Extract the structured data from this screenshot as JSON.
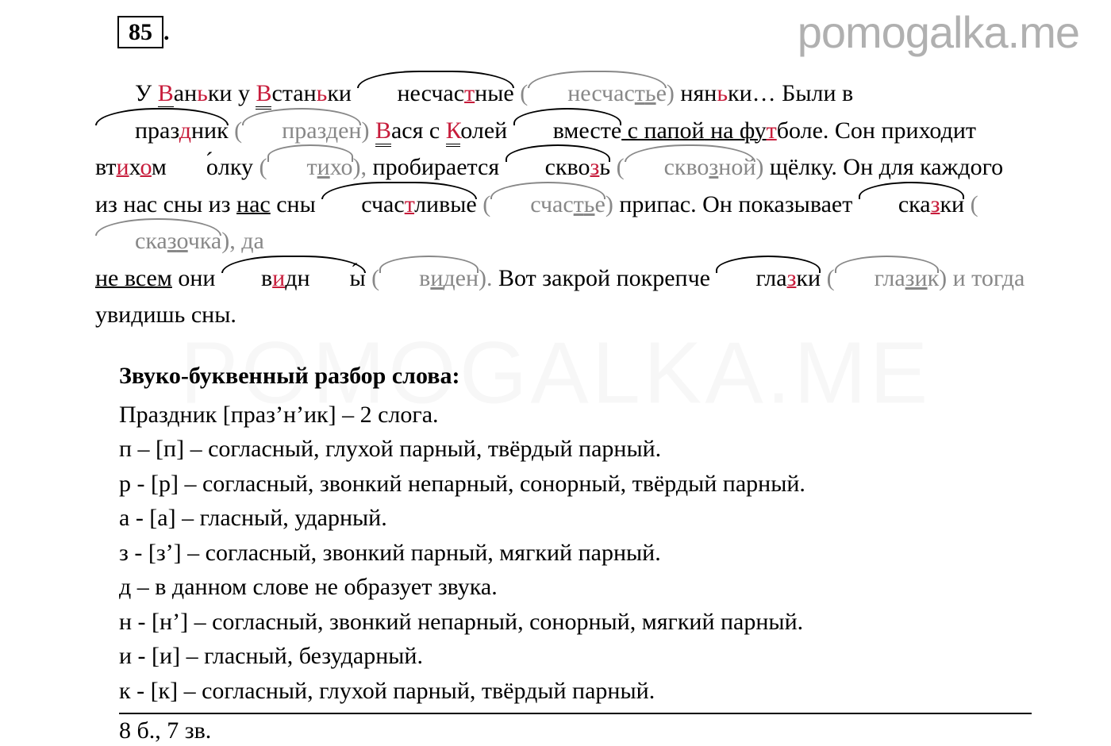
{
  "colors": {
    "text": "#000000",
    "highlight": "#c71c3b",
    "gray": "#888888",
    "watermark": "#b0b0b0",
    "background": "#ffffff"
  },
  "typography": {
    "body_font": "Georgia / Times New Roman serif",
    "body_size_pt": 22,
    "heading_weight": "bold",
    "watermark_font": "Arial sans-serif",
    "watermark_size_pt": 42
  },
  "watermark": "pomogalka.me",
  "exercise_number": "85",
  "exercise_dot": ".",
  "paragraph": {
    "s1_a": "У ",
    "s1_V1": "В",
    "s1_an": "ан",
    "s1_soft1": "ь",
    "s1_ki": "ки у ",
    "s1_V2": "В",
    "s1_stan": "стан",
    "s1_soft2": "ь",
    "s1_ki2": "ки ",
    "s1_neschast": "несчас",
    "s1_t": "т",
    "s1_nye": "ные",
    "s1_paren_open": " (",
    "s1_check_neschast": "несчас",
    "s1_check_t": "т",
    "s1_check_soft": "ь",
    "s1_check_e": "е",
    "s1_paren_close": ") ",
    "s1_nyan": "нян",
    "s1_soft3": "ь",
    "s1_ki3": "ки… Были в",
    "s2_praz": "праз",
    "s2_d": "д",
    "s2_nik": "ник",
    "s2_paren_open": " (",
    "s2_check_praz": "праз",
    "s2_check_d": "д",
    "s2_check_en": "ен",
    "s2_paren_close": ") ",
    "s2_V": "В",
    "s2_asya": "ася с ",
    "s2_K": "К",
    "s2_oley": "олей ",
    "s2_vmeste": "вместе",
    "s2_spapoy": " с папой",
    "s2_nafu": " на фу",
    "s2_t": "т",
    "s2_bole": "боле. Сон приходит",
    "s3_vt": "вт",
    "s3_i": "и",
    "s3_kh": "х",
    "s3_o": "о",
    "s3_molku": "м",
    "s3_oacc": "о",
    "s3_lku": "лку",
    "s3_paren_open": " (",
    "s3_check_t": "т",
    "s3_check_i": "и",
    "s3_check_kho": "хо",
    "s3_paren_close": "), ",
    "s3_probiraetsya": "пробирается ",
    "s3_skvo": "скво",
    "s3_z": "з",
    "s3_soft": "ь",
    "s3_po": " (",
    "s3_ck_skvo": "скво",
    "s3_ck_z": "з",
    "s3_ck_noy": "ной",
    "s3_pc": ") ",
    "s3_shchelku": "щёлку. Он для каждого",
    "s4_iznas": "из нас сны ",
    "s4_schas": "счас",
    "s4_t": "т",
    "s4_livye": "ливые",
    "s4_po": " (",
    "s4_ck_schas": "счас",
    "s4_ck_t": "т",
    "s4_ck_soft": "ь",
    "s4_ck_e": "е",
    "s4_pc": ") ",
    "s4_pripas": "припас. Он показывает ",
    "s4_ska": "ска",
    "s4_z": "з",
    "s4_ki": "ки",
    "s4_po2": " (",
    "s4_ck_ska": "ска",
    "s4_ck_z": "з",
    "s4_ck_o": "о",
    "s4_ck_chka": "чка",
    "s4_pc2": "), да",
    "s5_nevsem": "не всем они ",
    "s5_v": "в",
    "s5_i": "и",
    "s5_dn": "дн",
    "s5_yacc": "ы",
    "s5_po": " (",
    "s5_ck_v": "в",
    "s5_ck_i": "и",
    "s5_ck_den": "ден",
    "s5_pc": "). ",
    "s5_vot": "Вот закрой покрепче ",
    "s5_gla": "гла",
    "s5_z": "з",
    "s5_ki": "ки",
    "s5_po2": " (",
    "s5_ck_gla": "гла",
    "s5_ck_z": "з",
    "s5_ck_k": "к",
    "s5_pc2": ") и тогда",
    "s6": "увидишь сны."
  },
  "heading": "Звуко-буквенный разбор слова:",
  "analysis": {
    "line0": "Праздник [праз’н’ик] – 2 слога.",
    "line1": "п – [п] – согласный, глухой парный, твёрдый парный.",
    "line2": "р - [р] – согласный, звонкий непарный, сонорный, твёрдый парный.",
    "line3": "а - [а] – гласный, ударный.",
    "line4": "з - [з’] – согласный, звонкий парный, мягкий парный.",
    "line5": "д – в данном слове не образует звука.",
    "line6": "н - [н’] – согласный, звонкий непарный, сонорный, мягкий парный.",
    "line7": "и - [и] – гласный, безударный.",
    "line8": "к - [к] – согласный, глухой парный, твёрдый парный."
  },
  "footer": "8 б., 7 зв."
}
